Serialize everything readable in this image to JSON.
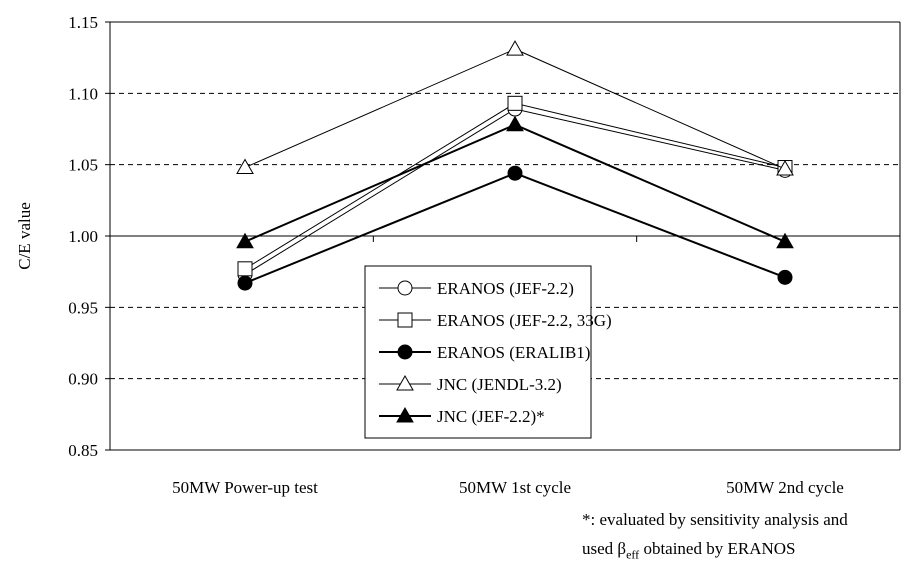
{
  "chart_data": {
    "type": "line",
    "title": "",
    "xlabel": "",
    "ylabel": "C/E value",
    "ylim": [
      0.85,
      1.15
    ],
    "yticks": [
      "0.85",
      "0.90",
      "0.95",
      "1.00",
      "1.05",
      "1.10",
      "1.15"
    ],
    "categories": [
      "50MW Power-up test",
      "50MW 1st cycle",
      "50MW 2nd cycle"
    ],
    "grid": "horizontal dashed",
    "legend_position": "lower-center",
    "series": [
      {
        "name": "ERANOS (JEF-2.2)",
        "marker": "circle-open",
        "values": [
          0.973,
          1.089,
          1.046
        ]
      },
      {
        "name": "ERANOS (JEF-2.2, 33G)",
        "marker": "square-open",
        "values": [
          0.977,
          1.093,
          1.048
        ]
      },
      {
        "name": "ERANOS (ERALIB1)",
        "marker": "circle-filled",
        "values": [
          0.967,
          1.044,
          0.971
        ]
      },
      {
        "name": "JNC (JENDL-3.2)",
        "marker": "triangle-open",
        "values": [
          1.048,
          1.131,
          1.047
        ]
      },
      {
        "name": "JNC (JEF-2.2)*",
        "marker": "triangle-filled",
        "values": [
          0.996,
          1.078,
          0.996
        ]
      }
    ]
  },
  "note": {
    "line1": "*: evaluated by sensitivity analysis and",
    "line2_prefix": "used ",
    "beta": "β",
    "beta_sub": "eff",
    "line2_suffix": " obtained by ERANOS"
  },
  "colors": {
    "line": "#000000",
    "grid": "#000000",
    "background": "#ffffff"
  }
}
